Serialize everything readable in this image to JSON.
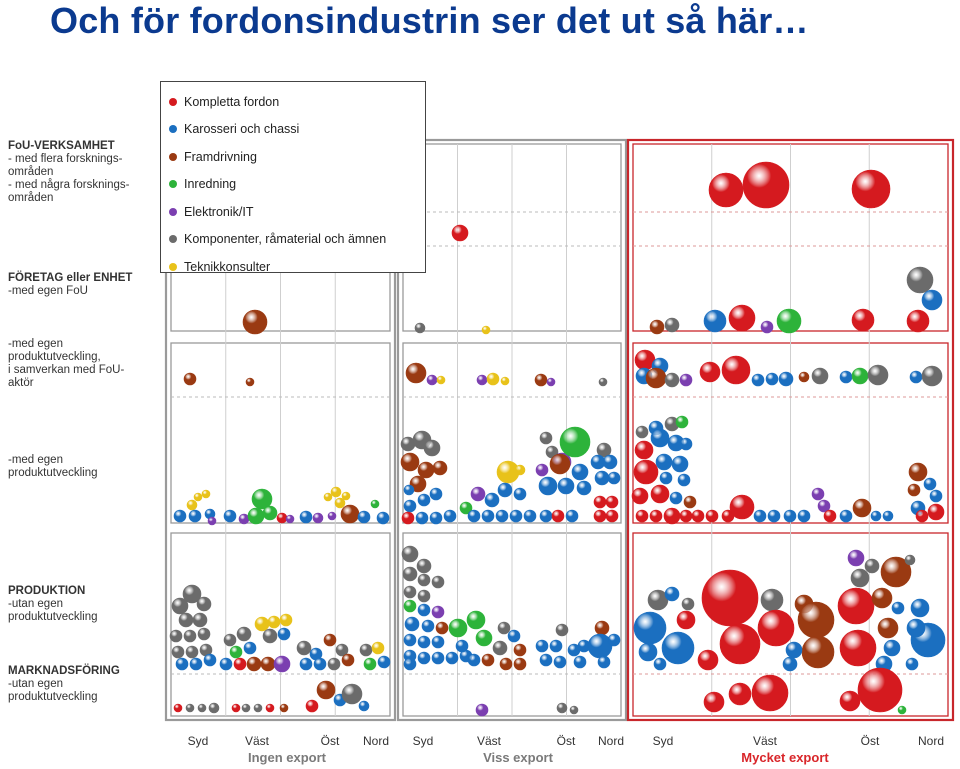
{
  "title": "Och för fordonsindustrin ser det ut så här…",
  "row_labels": [
    {
      "heading": "FoU-VERKSAMHET",
      "lines": [
        "- med flera forsknings-",
        "områden",
        "- med några forsknings-",
        "områden"
      ],
      "top": 140
    },
    {
      "heading": "FÖRETAG eller ENHET",
      "lines": [
        "-med egen FoU"
      ],
      "top": 272
    },
    {
      "heading": "",
      "lines": [
        "-med egen",
        "produktutveckling,",
        "i samverkan med FoU-",
        "aktör"
      ],
      "top": 338
    },
    {
      "heading": "",
      "lines": [
        "-med egen",
        "produktutveckling"
      ],
      "top": 454
    },
    {
      "heading": "PRODUKTION",
      "lines": [
        "-utan egen",
        "produktutveckling"
      ],
      "top": 585
    },
    {
      "heading": "MARKNADSFÖRING",
      "lines": [
        "-utan egen",
        "produktutveckling"
      ],
      "top": 665
    }
  ],
  "regions": [
    "Syd",
    "Väst",
    "Öst",
    "Nord"
  ],
  "export_groups": [
    {
      "label": "Ingen export",
      "color": "#7a7a7a"
    },
    {
      "label": "Viss export",
      "color": "#7a7a7a"
    },
    {
      "label": "Mycket export",
      "color": "#d9262a"
    }
  ],
  "legend": [
    {
      "key": "kf",
      "label": "Kompletta fordon",
      "color": "#d51a1f"
    },
    {
      "key": "kc",
      "label": "Karosseri och chassi",
      "color": "#1b6fc0"
    },
    {
      "key": "fr",
      "label": "Framdrivning",
      "color": "#9a3a12"
    },
    {
      "key": "in",
      "label": "Inredning",
      "color": "#2db33a"
    },
    {
      "key": "el",
      "label": "Elektronik/IT",
      "color": "#7b3fb0"
    },
    {
      "key": "ko",
      "label": "Komponenter, råmaterial och ämnen",
      "color": "#6b6b6b"
    },
    {
      "key": "te",
      "label": "Teknikkonsulter",
      "color": "#e8c21a"
    }
  ],
  "chart_data": {
    "type": "scatter",
    "title": "Och för fordonsindustrin ser det ut så här…",
    "x_axis": {
      "groups": [
        "Ingen export",
        "Viss export",
        "Mycket export"
      ],
      "subcategories": [
        "Syd",
        "Väst",
        "Öst",
        "Nord"
      ]
    },
    "y_axis": {
      "categories": [
        "FoU-verksamhet med flera forskningsområden",
        "FoU-verksamhet med några forskningsområden",
        "Företag eller enhet med egen FoU",
        "med egen produktutveckling, i samverkan med FoU-aktör",
        "med egen produktutveckling",
        "Produktion utan egen produktutveckling",
        "Marknadsföring utan egen produktutveckling"
      ]
    },
    "series": [
      {
        "name": "Kompletta fordon",
        "key": "kf"
      },
      {
        "name": "Karosseri och chassi",
        "key": "kc"
      },
      {
        "name": "Framdrivning",
        "key": "fr"
      },
      {
        "name": "Inredning",
        "key": "in"
      },
      {
        "name": "Elektronik/IT",
        "key": "el"
      },
      {
        "name": "Komponenter, råmaterial och ämnen",
        "key": "ko"
      },
      {
        "name": "Teknikkonsulter",
        "key": "te"
      }
    ],
    "notes": "Bubble chart: each bubble is one firm/unit, colored by sector; bubble size indicates company size (not labeled)."
  }
}
